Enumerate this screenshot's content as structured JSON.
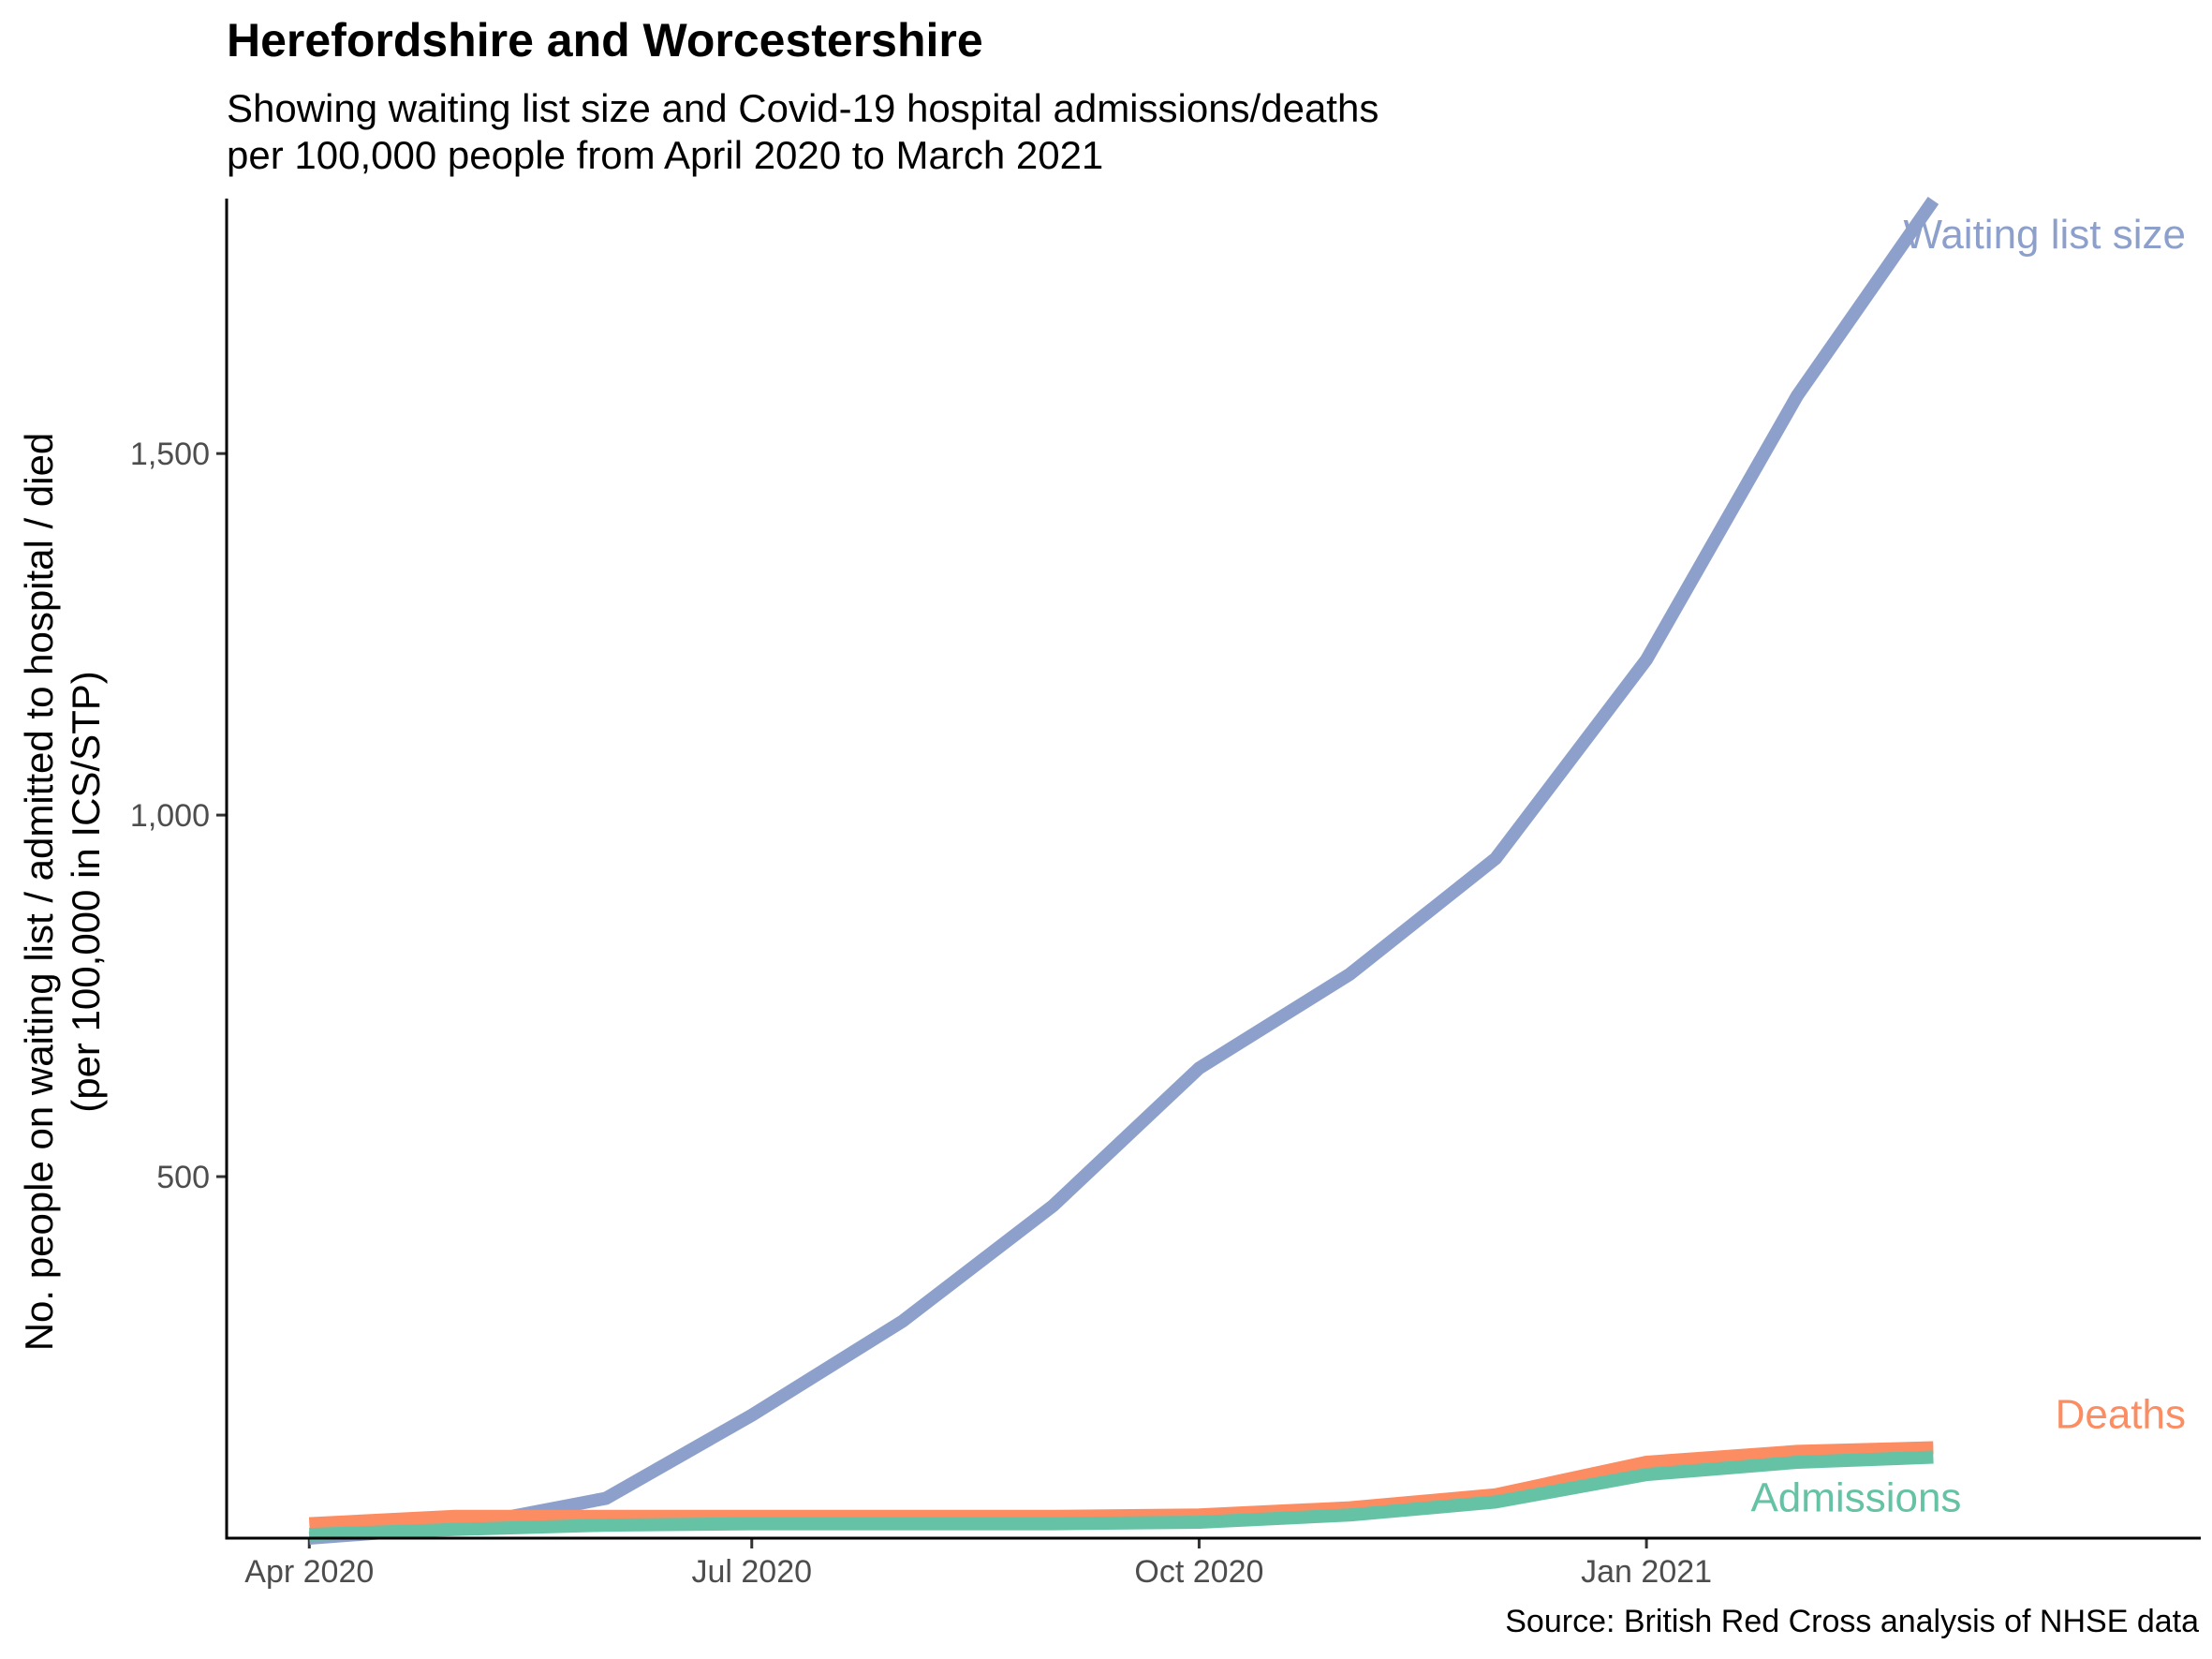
{
  "chart_data": {
    "type": "line",
    "title": "Herefordshire and Worcestershire",
    "subtitle": [
      "Showing waiting list size and Covid-19 hospital admissions/deaths",
      "per 100,000 people from April 2020 to March 2021"
    ],
    "caption": "Source: British Red Cross analysis of NHSE data",
    "xlabel": "",
    "ylabel": [
      "No. people on waiting list / admitted to hospital / died",
      "(per 100,000 in ICS/STP)"
    ],
    "x_ticks": [
      "2020-04-01",
      "2020-07-01",
      "2020-10-01",
      "2021-01-01"
    ],
    "x_tick_labels": [
      "Apr 2020",
      "Jul 2020",
      "Oct 2020",
      "Jan 2021"
    ],
    "y_ticks": [
      500,
      1000,
      1500
    ],
    "y_tick_labels": [
      "500",
      "1,000",
      "1,500"
    ],
    "xlim": [
      "2020-03-15",
      "2021-04-25"
    ],
    "ylim": [
      0,
      1850
    ],
    "grid": false,
    "legend": "direct labels at line ends",
    "x": [
      "2020-04-01",
      "2020-05-01",
      "2020-06-01",
      "2020-07-01",
      "2020-08-01",
      "2020-09-01",
      "2020-10-01",
      "2020-11-01",
      "2020-12-01",
      "2021-01-01",
      "2021-02-01",
      "2021-03-01"
    ],
    "series": [
      {
        "name": "Waiting list size",
        "color": "#8DA0CB",
        "values": [
          0,
          15,
          55,
          170,
          300,
          460,
          650,
          780,
          940,
          1215,
          1580,
          1850
        ]
      },
      {
        "name": "Deaths",
        "color": "#FC8D62",
        "values": [
          20,
          30,
          30,
          30,
          30,
          30,
          32,
          42,
          60,
          105,
          120,
          125
        ]
      },
      {
        "name": "Admissions",
        "color": "#66C2A5",
        "values": [
          5,
          12,
          18,
          20,
          20,
          20,
          22,
          32,
          50,
          88,
          105,
          112
        ]
      }
    ]
  }
}
